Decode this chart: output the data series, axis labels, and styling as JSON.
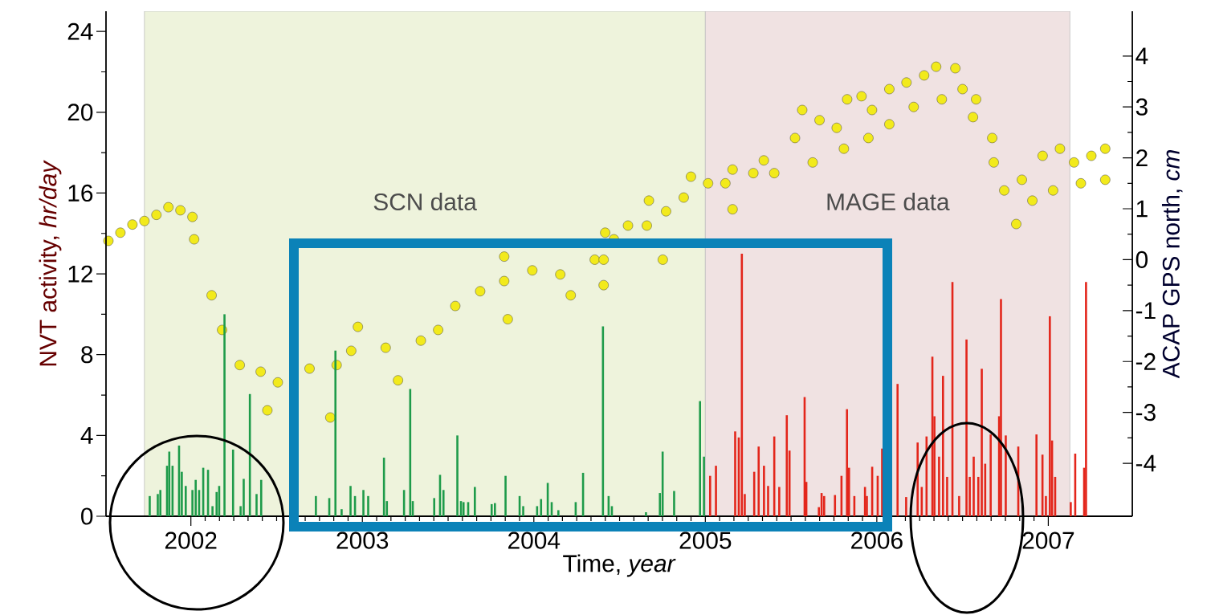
{
  "chart_data": {
    "type": "bar",
    "xlabel": "Time, *year*",
    "ylabel": "NVT activity, *hr/day*",
    "y2label": "ACAP GPS north, *cm*",
    "xlim": [
      2001.505,
      2007.49
    ],
    "xticks": [
      2002,
      2003,
      2004,
      2005,
      2006,
      2007
    ],
    "ylim": [
      0,
      25
    ],
    "yticks": [
      0,
      4,
      8,
      12,
      16,
      20,
      24
    ],
    "y2lim": [
      -5.04,
      4.88
    ],
    "y2ticks": [
      -4,
      -3,
      -2,
      -1,
      0,
      1,
      2,
      3,
      4
    ],
    "bands": [
      {
        "axis": "x",
        "from": 2001.729,
        "to": 2005.0,
        "label": "SCN data",
        "color": "#eef3dc"
      },
      {
        "axis": "x",
        "from": 2005.0,
        "to": 2007.126,
        "label": "MAGE data",
        "color": "#f0e2e2"
      }
    ],
    "series": [
      {
        "colors": [
          "#1e9b4a",
          "#1e9b4a",
          "#1e9b4a",
          "#1e9b4a",
          "#1e9b4a",
          "#1e9b4a",
          "#1e9b4a",
          "#1e9b4a",
          "#1e9b4a",
          "#1e9b4a",
          "#1e9b4a",
          "#1e9b4a",
          "#1e9b4a",
          "#1e9b4a",
          "#1e9b4a",
          "#1e9b4a",
          "#1e9b4a",
          "#1e9b4a",
          "#1e9b4a",
          "#1e9b4a",
          "#1e9b4a",
          "#1e9b4a",
          "#1e9b4a",
          "#1e9b4a",
          "#1e9b4a",
          "#1e9b4a",
          "#1e9b4a",
          "#1e9b4a",
          "#1e9b4a",
          "#1e9b4a",
          "#1e9b4a",
          "#1e9b4a",
          "#1e9b4a",
          "#1e9b4a",
          "#1e9b4a",
          "#1e9b4a",
          "#1e9b4a",
          "#1e9b4a",
          "#1e9b4a",
          "#1e9b4a",
          "#1e9b4a",
          "#1e9b4a",
          "#1e9b4a",
          "#1e9b4a",
          "#1e9b4a",
          "#1e9b4a",
          "#1e9b4a",
          "#1e9b4a",
          "#1e9b4a",
          "#1e9b4a",
          "#1e9b4a",
          "#1e9b4a",
          "#1e9b4a",
          "#1e9b4a",
          "#1e9b4a",
          "#1e9b4a",
          "#1e9b4a",
          "#1e9b4a",
          "#1e9b4a",
          "#1e9b4a",
          "#1e9b4a",
          "#1e9b4a",
          "#1e9b4a",
          "#1e9b4a",
          "#1e9b4a",
          "#1e9b4a",
          "#e3261b",
          "#e3261b",
          "#e3261b",
          "#e3261b",
          "#e3261b",
          "#e3261b",
          "#e3261b",
          "#e3261b",
          "#e3261b",
          "#e3261b",
          "#e3261b",
          "#e3261b",
          "#e3261b",
          "#e3261b",
          "#e3261b",
          "#e3261b",
          "#e3261b",
          "#e3261b",
          "#e3261b",
          "#e3261b",
          "#e3261b",
          "#e3261b",
          "#e3261b",
          "#e3261b",
          "#e3261b",
          "#e3261b",
          "#e3261b",
          "#e3261b",
          "#e3261b",
          "#e3261b",
          "#e3261b",
          "#e3261b",
          "#e3261b",
          "#e3261b",
          "#e3261b",
          "#e3261b",
          "#e3261b",
          "#e3261b",
          "#e3261b",
          "#e3261b",
          "#e3261b",
          "#e3261b",
          "#e3261b",
          "#e3261b",
          "#e3261b",
          "#e3261b",
          "#e3261b",
          "#e3261b",
          "#e3261b",
          "#e3261b",
          "#e3261b",
          "#e3261b",
          "#e3261b",
          "#e3261b",
          "#e3261b",
          "#e3261b",
          "#e3261b",
          "#e3261b",
          "#e3261b",
          "#e3261b",
          "#e3261b",
          "#e3261b",
          "#e3261b",
          "#e3261b"
        ],
        "x": [
          2001.76,
          2001.807,
          2001.822,
          2001.861,
          2001.874,
          2001.893,
          2001.931,
          2001.947,
          2001.97,
          2002.009,
          2002.028,
          2002.048,
          2002.072,
          2002.1,
          2002.126,
          2002.15,
          2002.165,
          2002.196,
          2002.246,
          2002.29,
          2002.308,
          2002.344,
          2002.383,
          2002.41,
          2002.729,
          2002.807,
          2002.843,
          2002.879,
          2002.931,
          2002.957,
          2003.006,
          2003.034,
          2003.126,
          2003.143,
          2003.243,
          2003.279,
          2003.294,
          2003.419,
          2003.453,
          2003.473,
          2003.554,
          2003.575,
          2003.59,
          2003.617,
          2003.656,
          2003.754,
          2003.773,
          2003.835,
          2003.917,
          2003.938,
          2004.019,
          2004.042,
          2004.081,
          2004.104,
          2004.143,
          2004.244,
          2004.287,
          2004.403,
          2004.436,
          2004.455,
          2004.654,
          2004.735,
          2004.751,
          2004.818,
          2004.969,
          2004.992,
          2005.028,
          2005.062,
          2005.168,
          2005.174,
          2005.195,
          2005.213,
          2005.23,
          2005.285,
          2005.311,
          2005.342,
          2005.366,
          2005.402,
          2005.431,
          2005.475,
          2005.491,
          2005.579,
          2005.589,
          2005.662,
          2005.678,
          2005.693,
          2005.756,
          2005.794,
          2005.826,
          2005.838,
          2005.869,
          2005.931,
          2005.942,
          2005.973,
          2006.005,
          2006.031,
          2006.121,
          2006.171,
          2006.238,
          2006.262,
          2006.29,
          2006.324,
          2006.336,
          2006.363,
          2006.386,
          2006.41,
          2006.441,
          2006.48,
          2006.523,
          2006.542,
          2006.565,
          2006.592,
          2006.612,
          2006.632,
          2006.664,
          2006.713,
          2006.724,
          2006.752,
          2006.825,
          2006.838,
          2006.931,
          2006.966,
          2006.986,
          2007.009,
          2007.022,
          2007.04,
          2007.131,
          2007.157,
          2007.209,
          2007.22
        ],
        "values": [
          1.0,
          1.1,
          1.3,
          2.5,
          3.2,
          2.5,
          3.5,
          2.2,
          1.5,
          1.3,
          1.8,
          1.3,
          2.4,
          2.3,
          0.5,
          1.2,
          1.5,
          10.0,
          3.3,
          0.5,
          1.85,
          6.05,
          1.1,
          1.8,
          1.0,
          0.9,
          8.2,
          0.35,
          1.5,
          1.0,
          1.3,
          1.0,
          2.9,
          0.75,
          1.3,
          6.3,
          0.75,
          0.9,
          2.05,
          1.3,
          4.0,
          0.75,
          0.7,
          0.7,
          1.45,
          0.6,
          0.65,
          2.0,
          1.0,
          0.5,
          0.5,
          0.85,
          1.65,
          0.7,
          0.3,
          0.7,
          2.15,
          9.4,
          1.0,
          0.5,
          0.2,
          1.15,
          3.2,
          1.25,
          5.7,
          2.95,
          2.0,
          2.5,
          null,
          4.2,
          3.9,
          13.0,
          1.1,
          2.2,
          3.45,
          2.5,
          1.5,
          3.95,
          1.45,
          5.0,
          3.25,
          5.9,
          1.7,
          0.45,
          1.15,
          1.0,
          1.05,
          2.0,
          5.3,
          2.4,
          1.0,
          1.45,
          1.0,
          2.45,
          2.0,
          3.35,
          6.55,
          0.95,
          3.65,
          1.45,
          3.95,
          7.9,
          4.95,
          2.95,
          6.95,
          1.95,
          11.6,
          1.0,
          8.75,
          1.95,
          2.95,
          1.95,
          7.3,
          2.6,
          4.05,
          4.95,
          10.75,
          4.0,
          3.45,
          null,
          4.05,
          3.05,
          1.0,
          9.9,
          3.75,
          1.95,
          0.7,
          3.1,
          2.4,
          11.6
        ]
      },
      {
        "type": "scatter",
        "axis": "y2",
        "color": "#f2ea1c",
        "marker": "circle",
        "x": [
          2001.519,
          2001.589,
          2001.659,
          2001.729,
          2001.799,
          2001.869,
          2001.939,
          2002.009,
          2002.019,
          2002.121,
          2002.182,
          2002.285,
          2002.407,
          2002.446,
          2002.507,
          2002.692,
          2002.813,
          2002.85,
          2002.935,
          2002.974,
          2003.136,
          2003.208,
          2003.341,
          2003.442,
          2003.542,
          2003.687,
          2003.827,
          2003.827,
          2003.848,
          2003.991,
          2004.154,
          2004.215,
          2004.355,
          2004.407,
          2004.407,
          2004.416,
          2004.467,
          2004.549,
          2004.659,
          2004.671,
          2004.752,
          2004.771,
          2004.874,
          2004.916,
          2005.016,
          2005.117,
          2005.159,
          2005.159,
          2005.28,
          2005.341,
          2005.402,
          2005.523,
          2005.565,
          2005.626,
          2005.666,
          2005.766,
          2005.808,
          2005.827,
          2005.911,
          2005.951,
          2005.972,
          2006.073,
          2006.073,
          2006.173,
          2006.215,
          2006.276,
          2006.346,
          2006.379,
          2006.458,
          2006.5,
          2006.561,
          2006.579,
          2006.673,
          2006.682,
          2006.743,
          2006.813,
          2006.846,
          2006.907,
          2006.967,
          2007.028,
          2007.068,
          2007.15,
          2007.19,
          2007.251,
          2007.332,
          2007.332
        ],
        "values": [
          0.37,
          0.53,
          0.69,
          0.76,
          0.88,
          1.03,
          0.97,
          0.84,
          0.4,
          -0.7,
          -1.38,
          -2.07,
          -2.2,
          -2.96,
          -2.41,
          -2.14,
          -3.1,
          -2.07,
          -1.79,
          -1.32,
          -1.73,
          -2.37,
          -1.59,
          -1.38,
          -0.91,
          -0.62,
          -0.42,
          0.06,
          -1.17,
          -0.21,
          -0.29,
          -0.7,
          0,
          0,
          -0.5,
          0.53,
          0.4,
          0.67,
          0.67,
          1.16,
          0,
          0.95,
          1.22,
          1.63,
          1.5,
          1.5,
          1.77,
          0.99,
          1.7,
          1.95,
          1.7,
          2.39,
          2.94,
          1.91,
          2.74,
          2.59,
          2.18,
          3.15,
          3.21,
          2.39,
          2.94,
          3.35,
          2.66,
          3.48,
          3.0,
          3.62,
          3.79,
          3.15,
          3.76,
          3.35,
          2.8,
          3.15,
          2.39,
          1.91,
          1.36,
          0.7,
          1.57,
          1.16,
          2.04,
          1.36,
          2.18,
          1.91,
          1.5,
          2.04,
          2.18,
          1.57
        ]
      }
    ]
  }
}
